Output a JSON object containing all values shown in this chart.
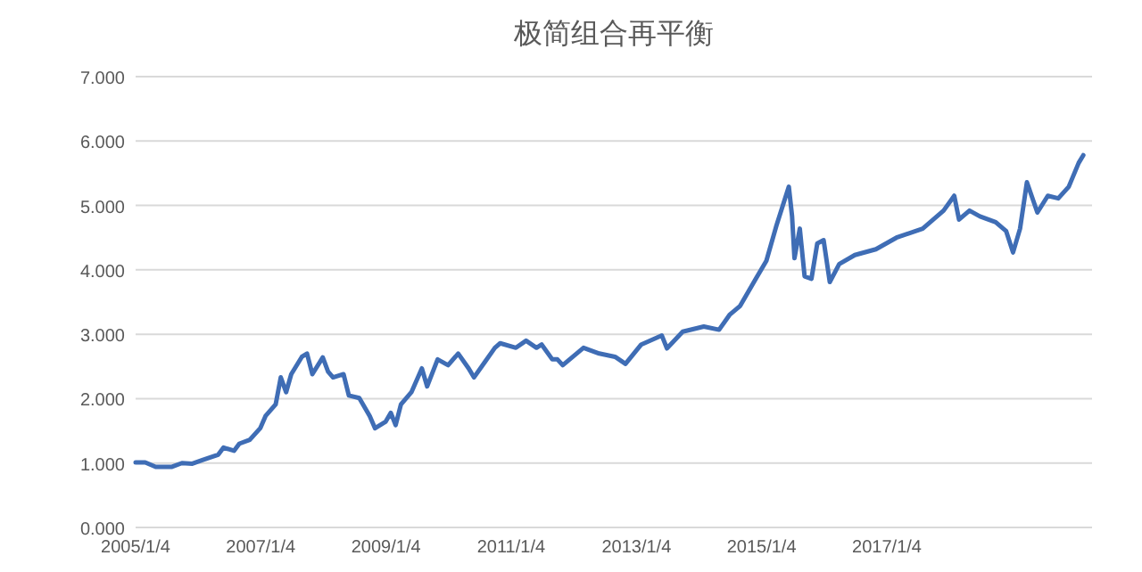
{
  "chart_data": {
    "type": "line",
    "title": "极简组合再平衡",
    "x": [
      "2005-01-04",
      "2005-03",
      "2005-05",
      "2005-08",
      "2005-10",
      "2005-12",
      "2006-02",
      "2006-05",
      "2006-06",
      "2006-08",
      "2006-09",
      "2006-11",
      "2007-01",
      "2007-02",
      "2007-04",
      "2007-05",
      "2007-06",
      "2007-07",
      "2007-09",
      "2007-10",
      "2007-11",
      "2008-01",
      "2008-02",
      "2008-03",
      "2008-05",
      "2008-06",
      "2008-08",
      "2008-10",
      "2008-11",
      "2009-01",
      "2009-02",
      "2009-03",
      "2009-04",
      "2009-06",
      "2009-08",
      "2009-09",
      "2009-11",
      "2010-01",
      "2010-03",
      "2010-05",
      "2010-06",
      "2010-08",
      "2010-10",
      "2010-11",
      "2011-02",
      "2011-04",
      "2011-06",
      "2011-07",
      "2011-09",
      "2011-10",
      "2011-11",
      "2012-03",
      "2012-06",
      "2012-09",
      "2012-11",
      "2013-02",
      "2013-06",
      "2013-07",
      "2013-10",
      "2014-02",
      "2014-05",
      "2014-07",
      "2014-09",
      "2014-12",
      "2015-02",
      "2015-04",
      "2015-06-12",
      "2015-07-01",
      "2015-07-15",
      "2015-08-15",
      "2015-09-12",
      "2015-10-22",
      "2015-11-25",
      "2016-01-01",
      "2016-02-06",
      "2016-04",
      "2016-07",
      "2016-11",
      "2017-03",
      "2017-08",
      "2017-12",
      "2018-02",
      "2018-03",
      "2018-05",
      "2018-07",
      "2018-10",
      "2018-12",
      "2019-01-10",
      "2019-02-20",
      "2019-04",
      "2019-06",
      "2019-08",
      "2019-10",
      "2019-12",
      "2020-01-28",
      "2020-02-24"
    ],
    "values": [
      1.01,
      1.01,
      0.94,
      0.94,
      1.0,
      0.99,
      1.05,
      1.13,
      1.24,
      1.19,
      1.3,
      1.36,
      1.54,
      1.73,
      1.91,
      2.33,
      2.1,
      2.38,
      2.65,
      2.7,
      2.38,
      2.64,
      2.42,
      2.33,
      2.38,
      2.05,
      2.01,
      1.73,
      1.54,
      1.64,
      1.78,
      1.59,
      1.91,
      2.1,
      2.47,
      2.19,
      2.61,
      2.52,
      2.7,
      2.47,
      2.33,
      2.56,
      2.79,
      2.86,
      2.79,
      2.9,
      2.79,
      2.84,
      2.61,
      2.61,
      2.52,
      2.79,
      2.7,
      2.65,
      2.54,
      2.84,
      2.98,
      2.78,
      3.04,
      3.12,
      3.07,
      3.3,
      3.44,
      3.86,
      4.14,
      4.69,
      5.29,
      4.83,
      4.18,
      4.64,
      3.9,
      3.86,
      4.41,
      4.46,
      3.81,
      4.09,
      4.23,
      4.32,
      4.5,
      4.64,
      4.92,
      5.15,
      4.78,
      4.92,
      4.83,
      4.74,
      4.6,
      4.27,
      4.64,
      5.36,
      4.89,
      5.15,
      5.11,
      5.29,
      5.66,
      5.78
    ],
    "color": "#3f6db5",
    "xlim": [
      "2005-01-04",
      "2020-04-15"
    ],
    "xticks": [
      {
        "value": "2005-01-04",
        "label": "2005/1/4"
      },
      {
        "value": "2007-01-04",
        "label": "2007/1/4"
      },
      {
        "value": "2009-01-04",
        "label": "2009/1/4"
      },
      {
        "value": "2011-01-04",
        "label": "2011/1/4"
      },
      {
        "value": "2013-01-04",
        "label": "2013/1/4"
      },
      {
        "value": "2015-01-04",
        "label": "2015/1/4"
      },
      {
        "value": "2017-01-04",
        "label": "2017/1/4"
      }
    ],
    "ylim": [
      0,
      7
    ],
    "yticks": [
      {
        "value": 0,
        "label": "0.000"
      },
      {
        "value": 1,
        "label": "1.000"
      },
      {
        "value": 2,
        "label": "2.000"
      },
      {
        "value": 3,
        "label": "3.000"
      },
      {
        "value": 4,
        "label": "4.000"
      },
      {
        "value": 5,
        "label": "5.000"
      },
      {
        "value": 6,
        "label": "6.000"
      },
      {
        "value": 7,
        "label": "7.000"
      }
    ],
    "grid": "y"
  }
}
